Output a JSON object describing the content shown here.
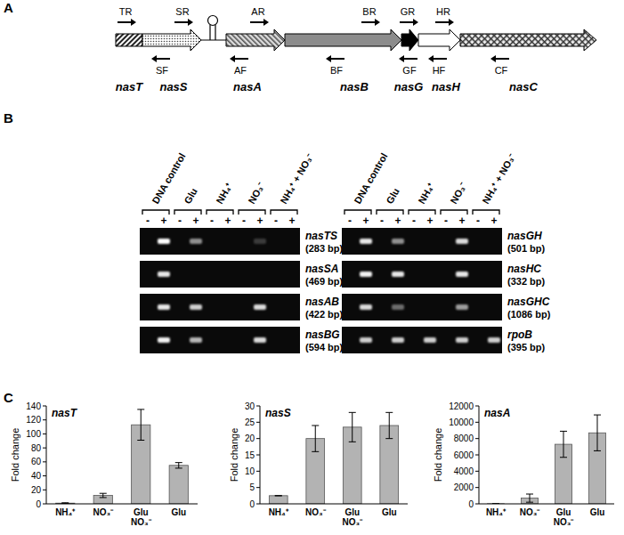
{
  "panel_a": {
    "label": "A",
    "genes": [
      "nasT",
      "nasS",
      "nasA",
      "nasB",
      "nasG",
      "nasH",
      "nasC"
    ],
    "primers_top": [
      "TR",
      "SR",
      "AR",
      "BR",
      "GR",
      "HR"
    ],
    "primers_bottom": [
      "SF",
      "AF",
      "BF",
      "GF",
      "HF",
      "CF"
    ]
  },
  "panel_b": {
    "label": "B",
    "headers": [
      "DNA control",
      "Glu",
      "NH₄⁺",
      "NO₃⁻",
      "NH₄⁺ + NO₃⁻"
    ],
    "signs": [
      "-",
      "+"
    ],
    "gels_left": [
      {
        "name": "nasTS",
        "size": "(283 bp)",
        "bands": [
          0,
          1,
          0,
          0.55,
          0,
          0,
          0,
          0.2,
          0,
          0
        ]
      },
      {
        "name": "nasSA",
        "size": "(469 bp)",
        "bands": [
          0,
          0.9,
          0,
          0,
          0,
          0,
          0,
          0,
          0,
          0
        ]
      },
      {
        "name": "nasAB",
        "size": "(422 bp)",
        "bands": [
          0,
          0.9,
          0,
          0.8,
          0,
          0,
          0,
          0.85,
          0,
          0
        ]
      },
      {
        "name": "nasBG",
        "size": "(594 bp)",
        "bands": [
          0,
          0.95,
          0,
          0.7,
          0,
          0,
          0,
          0.85,
          0,
          0
        ]
      }
    ],
    "gels_right": [
      {
        "name": "nasGH",
        "size": "(501 bp)",
        "bands": [
          0,
          0.9,
          0,
          0.55,
          0,
          0,
          0,
          0.85,
          0,
          0
        ]
      },
      {
        "name": "nasHC",
        "size": "(332 bp)",
        "bands": [
          0,
          0.95,
          0,
          0.9,
          0,
          0,
          0,
          0.9,
          0,
          0
        ]
      },
      {
        "name": "nasGHC",
        "size": "(1086 bp)",
        "bands": [
          0,
          0.85,
          0,
          0.4,
          0,
          0,
          0,
          0.6,
          0,
          0
        ]
      },
      {
        "name": "rpoB",
        "size": "(395 bp)",
        "bands": [
          0,
          0.8,
          0,
          0.8,
          0,
          0.8,
          0,
          0.8,
          0,
          0.8
        ]
      }
    ]
  },
  "panel_c": {
    "label": "C"
  },
  "chart_data": [
    {
      "type": "bar",
      "title": "nasT",
      "ylabel": "Fold change",
      "categories": [
        "NH₄⁺",
        "NO₃⁻",
        "Glu NO₃⁻",
        "Glu"
      ],
      "values": [
        1,
        12,
        113,
        55
      ],
      "errors": [
        0.5,
        3,
        22,
        4
      ],
      "color": "#b3b3b3",
      "ylim": [
        0,
        140
      ],
      "yticks": [
        0,
        20,
        40,
        60,
        80,
        100,
        120,
        140
      ]
    },
    {
      "type": "bar",
      "title": "nasS",
      "ylabel": "Fold change",
      "categories": [
        "NH₄⁺",
        "NO₃⁻",
        "Glu NO₃⁻",
        "Glu"
      ],
      "values": [
        2.5,
        20,
        23.5,
        24
      ],
      "errors": [
        0,
        4,
        4.5,
        4
      ],
      "color": "#b3b3b3",
      "ylim": [
        0,
        30
      ],
      "yticks": [
        0,
        5,
        10,
        15,
        20,
        25,
        30
      ]
    },
    {
      "type": "bar",
      "title": "nasA",
      "ylabel": "Fold change",
      "categories": [
        "NH₄⁺",
        "NO₃⁻",
        "Glu NO₃⁻",
        "Glu"
      ],
      "values": [
        10,
        700,
        7300,
        8700
      ],
      "errors": [
        0,
        500,
        1600,
        2200
      ],
      "color": "#b3b3b3",
      "ylim": [
        0,
        12000
      ],
      "yticks": [
        0,
        2000,
        4000,
        6000,
        8000,
        10000,
        12000
      ]
    }
  ]
}
